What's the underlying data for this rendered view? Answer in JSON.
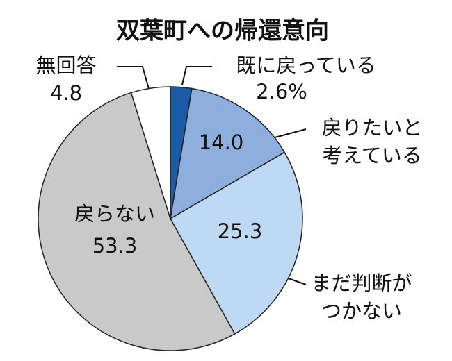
{
  "chart_data": {
    "type": "pie",
    "title": "双葉町への帰還意向",
    "categories": [
      "既に戻っている",
      "戻りたいと\n考えている",
      "まだ判断が\nつかない",
      "戻らない",
      "無回答"
    ],
    "values": [
      2.6,
      14.0,
      25.3,
      53.3,
      4.8
    ],
    "value_labels": [
      "2.6%",
      "14.0",
      "25.3",
      "53.3",
      "4.8"
    ],
    "colors": [
      "#1b5ca6",
      "#8eaede",
      "#bed9f3",
      "#c9c9c9",
      "#ffffff"
    ]
  }
}
